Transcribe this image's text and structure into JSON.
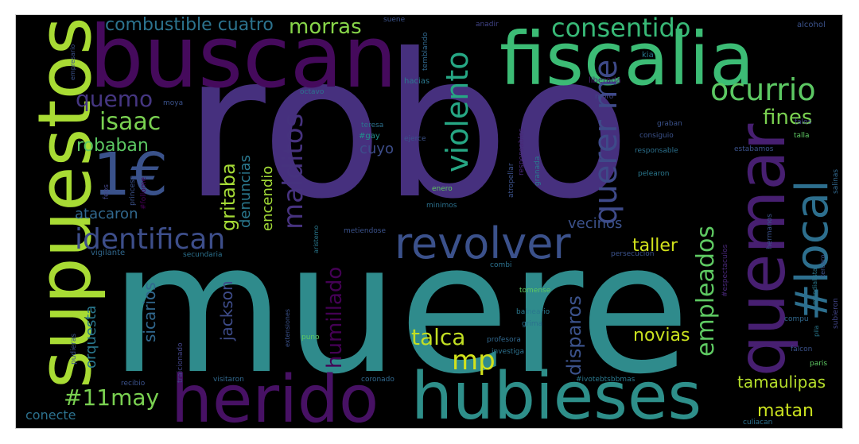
{
  "palette": {
    "purple": "#440154",
    "violet": "#472d7b",
    "indigo": "#3b528b",
    "blue": "#2c728e",
    "teal": "#21918c",
    "green": "#28ae80",
    "lightgreen": "#5ec962",
    "lime": "#addc30",
    "yellow": "#fde725"
  },
  "words": [
    {
      "text": "robo",
      "color": "#46307e"
    },
    {
      "text": "muere",
      "color": "#2f8b8c"
    },
    {
      "text": "buscan",
      "color": "#450a5c"
    },
    {
      "text": "fiscalia",
      "color": "#3cbc75"
    },
    {
      "text": "supuestos",
      "color": "#a8db34"
    },
    {
      "text": "herido",
      "color": "#471164"
    },
    {
      "text": "hubieses",
      "color": "#2e8f8a"
    },
    {
      "text": "quemar",
      "color": "#471f71"
    },
    {
      "text": "revolver",
      "color": "#3b518b"
    },
    {
      "text": "#local",
      "color": "#2d6f8e"
    },
    {
      "text": "1€",
      "color": "#3a528b"
    },
    {
      "text": "identifican",
      "color": "#3d4e8a"
    },
    {
      "text": "ocurrio",
      "color": "#5cc863"
    },
    {
      "text": "consentido",
      "color": "#38b977"
    },
    {
      "text": "querer me",
      "color": "#3e4a89"
    },
    {
      "text": "violento",
      "color": "#26a784"
    },
    {
      "text": "morras",
      "color": "#87d549"
    },
    {
      "text": "combustible cuatro",
      "color": "#2c738e"
    },
    {
      "text": "quemo",
      "color": "#453681"
    },
    {
      "text": "isaac",
      "color": "#7ad151"
    },
    {
      "text": "robaban",
      "color": "#5cc863"
    },
    {
      "text": "malditos",
      "color": "#46327e"
    },
    {
      "text": "gritaba",
      "color": "#a5db36"
    },
    {
      "text": "fines",
      "color": "#7ad151"
    },
    {
      "text": "#11may",
      "color": "#7ad151"
    },
    {
      "text": "mp",
      "color": "#d2e21b"
    },
    {
      "text": "talca",
      "color": "#c2df23"
    },
    {
      "text": "empleados",
      "color": "#5ec962"
    },
    {
      "text": "humillado",
      "color": "#440154"
    },
    {
      "text": "disparos",
      "color": "#3b528b"
    },
    {
      "text": "tamaulipas",
      "color": "#b5de2b"
    },
    {
      "text": "matan",
      "color": "#cae11f"
    },
    {
      "text": "novias",
      "color": "#cae11f"
    },
    {
      "text": "taller",
      "color": "#d2e21b"
    },
    {
      "text": "vecinos",
      "color": "#3b518b"
    },
    {
      "text": "atacaron",
      "color": "#31688e"
    },
    {
      "text": "sicarios",
      "color": "#31688e"
    },
    {
      "text": "orquesta",
      "color": "#2a788e"
    },
    {
      "text": "jackson",
      "color": "#3e4c8a"
    },
    {
      "text": "encendio",
      "color": "#a2da37"
    },
    {
      "text": "denuncias",
      "color": "#2a788e"
    },
    {
      "text": "cuyo",
      "color": "#3d4d8a"
    },
    {
      "text": "conecte",
      "color": "#2c718e"
    },
    {
      "text": "alcohol",
      "color": "#3b528b"
    },
    {
      "text": "kia",
      "color": "#2a788e"
    },
    {
      "text": "suene",
      "color": "#3b528b"
    },
    {
      "text": "temblando",
      "color": "#31688e"
    },
    {
      "text": "anadir",
      "color": "#414487"
    },
    {
      "text": "hacias",
      "color": "#2a788e"
    },
    {
      "text": "liberada",
      "color": "#481f70"
    },
    {
      "text": "moro",
      "color": "#414487"
    },
    {
      "text": "octavo",
      "color": "#2c718e"
    },
    {
      "text": "moya",
      "color": "#3b528b"
    },
    {
      "text": "teresa",
      "color": "#2c718e"
    },
    {
      "text": "#gay",
      "color": "#21918c"
    },
    {
      "text": "ejerce",
      "color": "#3b528b"
    },
    {
      "text": "responsables",
      "color": "#482878"
    },
    {
      "text": "graban",
      "color": "#3b528b"
    },
    {
      "text": "consiguio",
      "color": "#3b528b"
    },
    {
      "text": "responsable",
      "color": "#2c718e"
    },
    {
      "text": "pelearon",
      "color": "#2a788e"
    },
    {
      "text": "estabamos",
      "color": "#3b528b"
    },
    {
      "text": "talla",
      "color": "#5ec962"
    },
    {
      "text": "falos",
      "color": "#414487"
    },
    {
      "text": "atropellar",
      "color": "#3b528b"
    },
    {
      "text": "enero",
      "color": "#5ec962"
    },
    {
      "text": "minimos",
      "color": "#2c718e"
    },
    {
      "text": "metiendose",
      "color": "#3b528b"
    },
    {
      "text": "aristemo",
      "color": "#2a788e"
    },
    {
      "text": "vigilante",
      "color": "#31688e"
    },
    {
      "text": "secundaria",
      "color": "#2c718e"
    },
    {
      "text": "combi",
      "color": "#2c718e"
    },
    {
      "text": "persecucion",
      "color": "#3b528b"
    },
    {
      "text": "tomense",
      "color": "#5ec962"
    },
    {
      "text": "balneario",
      "color": "#2a788e"
    },
    {
      "text": "grima",
      "color": "#2c718e"
    },
    {
      "text": "profesora",
      "color": "#31688e"
    },
    {
      "text": "investiga",
      "color": "#2c718e"
    },
    {
      "text": "#ivotebtsbbmas",
      "color": "#2a788e"
    },
    {
      "text": "coronado",
      "color": "#31688e"
    },
    {
      "text": "puno",
      "color": "#5ec962"
    },
    {
      "text": "extensiones",
      "color": "#3b528b"
    },
    {
      "text": "visitaron",
      "color": "#31688e"
    },
    {
      "text": "recibio",
      "color": "#3b528b"
    },
    {
      "text": "traicionado",
      "color": "#414487"
    },
    {
      "text": "pudieras",
      "color": "#3b528b"
    },
    {
      "text": "culiacan",
      "color": "#2c718e"
    },
    {
      "text": "paris",
      "color": "#5ec962"
    },
    {
      "text": "falcon",
      "color": "#3b528b"
    },
    {
      "text": "compu",
      "color": "#31688e"
    },
    {
      "text": "subieron",
      "color": "#414487"
    },
    {
      "text": "hermanos",
      "color": "#3b528b"
    },
    {
      "text": "#espectaculos",
      "color": "#482878"
    },
    {
      "text": "empresario",
      "color": "#3b528b"
    },
    {
      "text": "#follome",
      "color": "#440154"
    },
    {
      "text": "princesa",
      "color": "#3b528b"
    },
    {
      "text": "feos",
      "color": "#414487"
    },
    {
      "text": "granada",
      "color": "#2a788e"
    },
    {
      "text": "salinas",
      "color": "#31688e"
    },
    {
      "text": "pila",
      "color": "#2a788e"
    },
    {
      "text": "tercero",
      "color": "#3b528b"
    },
    {
      "text": "mundialista",
      "color": "#2a788e"
    }
  ]
}
